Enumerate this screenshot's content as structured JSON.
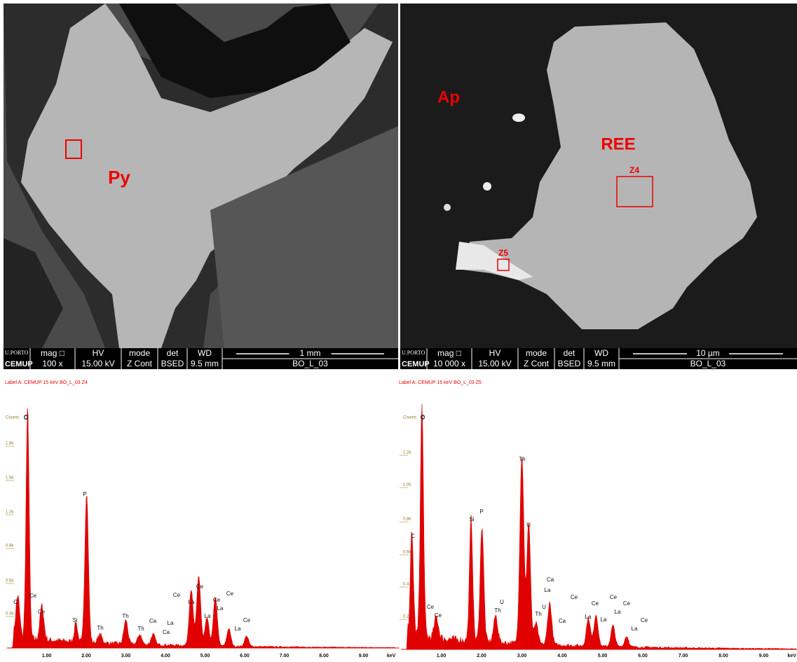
{
  "panels": [
    {
      "labels": [
        "Py"
      ],
      "infobar": {
        "logo_top": "U.PORTO",
        "logo_bottom": "CEMUP",
        "headers": [
          "mag □",
          "HV",
          "mode",
          "det",
          "WD"
        ],
        "values": [
          "100 x",
          "15.00 kV",
          "Z Cont",
          "BSED",
          "9.5 mm"
        ],
        "scale": "1 mm",
        "sample": "BO_L_03"
      }
    },
    {
      "labels": [
        "Ap",
        "REE",
        "Z4",
        "Z5"
      ],
      "infobar": {
        "logo_top": "U.PORTO",
        "logo_bottom": "CEMUP",
        "headers": [
          "mag □",
          "HV",
          "mode",
          "det",
          "WD"
        ],
        "values": [
          "10 000 x",
          "15.00 kV",
          "Z Cont",
          "BSED",
          "9.5 mm"
        ],
        "scale": "10 µm",
        "sample": "BO_L_03"
      }
    }
  ],
  "spectra": [
    {
      "label": "Label A: CEMUP      15 keV   BO_L_03  Z4",
      "yticks": [
        "Counts",
        "1.8k",
        "1.5k",
        "1.2k",
        "0.9k",
        "0.6k",
        "0.3k"
      ],
      "xticks": [
        "1.00",
        "2.00",
        "3.00",
        "4.00",
        "5.00",
        "6.00",
        "7.00",
        "8.00",
        "9.00"
      ],
      "xunit": "keV",
      "peaks": [
        "O",
        "P",
        "C",
        "Ce",
        "Ce",
        "Si",
        "Th",
        "Th",
        "Th",
        "Ca",
        "Ca",
        "La",
        "Ce",
        "La",
        "Ce",
        "Ce",
        "La",
        "La",
        "Ce",
        "La",
        "Ce"
      ]
    },
    {
      "label": "Label A: CEMUP      15 keV   BO_L_03  Z5",
      "yticks": [
        "Counts",
        "1.2k",
        "1.0k",
        "0.8k",
        "0.6k",
        "0.4",
        "0.2"
      ],
      "xticks": [
        "1.00",
        "2.00",
        "3.00",
        "4.00",
        "5.00",
        "6.00",
        "7.00",
        "8.00",
        "9.00"
      ],
      "xunit": "keV",
      "peaks": [
        "O",
        "C",
        "Si",
        "P",
        "Th",
        "U",
        "U",
        "Th",
        "Ce",
        "Ce",
        "Ca",
        "La",
        "Ce",
        "Th",
        "U",
        "Ca",
        "La",
        "Ce",
        "La",
        "Ce",
        "La",
        "Ce",
        "Ce",
        "La"
      ]
    }
  ]
}
